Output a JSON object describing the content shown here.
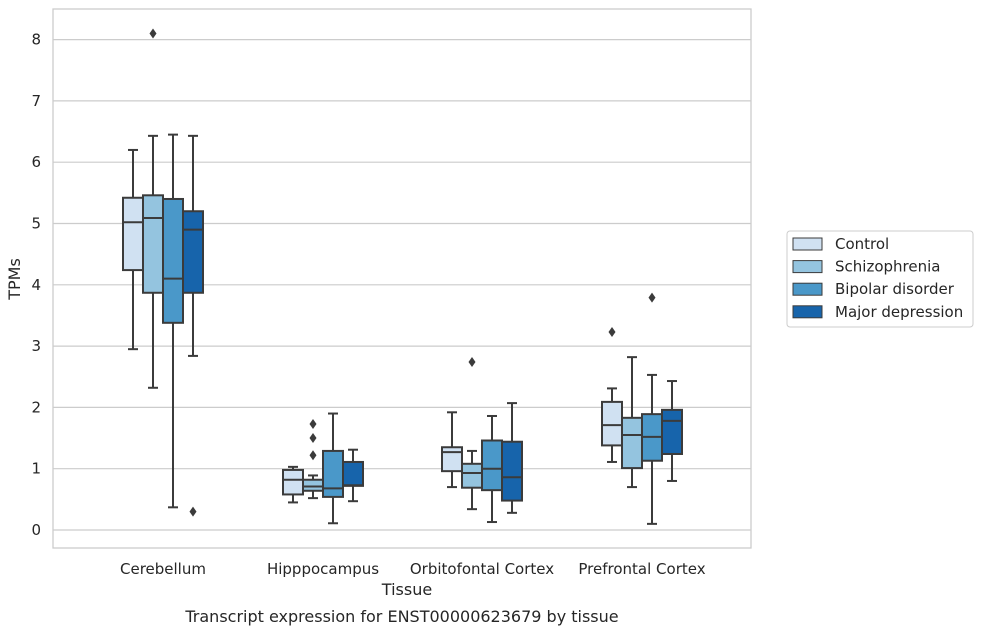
{
  "chart_data": {
    "type": "box",
    "caption": "Transcript expression for ENST00000623679 by tissue",
    "xlabel": "Tissue",
    "ylabel": "TPMs",
    "ylim": [
      -0.3,
      8.5
    ],
    "yticks": [
      0,
      1,
      2,
      3,
      4,
      5,
      6,
      7,
      8
    ],
    "grid": "horizontal",
    "legend_placement": "outside-right",
    "categories": [
      "Cerebellum",
      "Hipppocampus",
      "Orbitofontal Cortex",
      "Prefrontal Cortex"
    ],
    "series": [
      {
        "name": "Control",
        "color": "#d0e1f2",
        "boxes": [
          {
            "whislo": 2.95,
            "q1": 4.24,
            "med": 5.02,
            "q3": 5.42,
            "whishi": 6.2,
            "fliers": []
          },
          {
            "whislo": 0.45,
            "q1": 0.58,
            "med": 0.82,
            "q3": 0.98,
            "whishi": 1.03,
            "fliers": []
          },
          {
            "whislo": 0.7,
            "q1": 0.96,
            "med": 1.27,
            "q3": 1.35,
            "whishi": 1.92,
            "fliers": []
          },
          {
            "whislo": 1.11,
            "q1": 1.38,
            "med": 1.71,
            "q3": 2.09,
            "whishi": 2.31,
            "fliers": [
              3.23
            ]
          }
        ]
      },
      {
        "name": "Schizophrenia",
        "color": "#94c4df",
        "boxes": [
          {
            "whislo": 2.32,
            "q1": 3.87,
            "med": 5.09,
            "q3": 5.46,
            "whishi": 6.43,
            "fliers": [
              8.1
            ]
          },
          {
            "whislo": 0.52,
            "q1": 0.64,
            "med": 0.71,
            "q3": 0.82,
            "whishi": 0.89,
            "fliers": [
              1.22,
              1.5,
              1.73
            ]
          },
          {
            "whislo": 0.34,
            "q1": 0.69,
            "med": 0.93,
            "q3": 1.08,
            "whishi": 1.29,
            "fliers": [
              2.74
            ]
          },
          {
            "whislo": 0.7,
            "q1": 1.01,
            "med": 1.55,
            "q3": 1.83,
            "whishi": 2.82,
            "fliers": []
          }
        ]
      },
      {
        "name": "Bipolar disorder",
        "color": "#4a98c9",
        "boxes": [
          {
            "whislo": 0.37,
            "q1": 3.38,
            "med": 4.1,
            "q3": 5.4,
            "whishi": 6.45,
            "fliers": []
          },
          {
            "whislo": 0.11,
            "q1": 0.54,
            "med": 0.68,
            "q3": 1.29,
            "whishi": 1.9,
            "fliers": []
          },
          {
            "whislo": 0.13,
            "q1": 0.65,
            "med": 1.0,
            "q3": 1.46,
            "whishi": 1.86,
            "fliers": []
          },
          {
            "whislo": 0.1,
            "q1": 1.13,
            "med": 1.52,
            "q3": 1.89,
            "whishi": 2.53,
            "fliers": [
              3.79
            ]
          }
        ]
      },
      {
        "name": "Major depression",
        "color": "#1764ab",
        "boxes": [
          {
            "whislo": 2.84,
            "q1": 3.87,
            "med": 4.9,
            "q3": 5.2,
            "whishi": 6.43,
            "fliers": [
              0.3
            ]
          },
          {
            "whislo": 0.47,
            "q1": 0.72,
            "med": 0.73,
            "q3": 1.11,
            "whishi": 1.31,
            "fliers": []
          },
          {
            "whislo": 0.28,
            "q1": 0.48,
            "med": 0.86,
            "q3": 1.44,
            "whishi": 2.07,
            "fliers": []
          },
          {
            "whislo": 0.8,
            "q1": 1.24,
            "med": 1.78,
            "q3": 1.96,
            "whishi": 2.43,
            "fliers": []
          }
        ]
      }
    ]
  }
}
